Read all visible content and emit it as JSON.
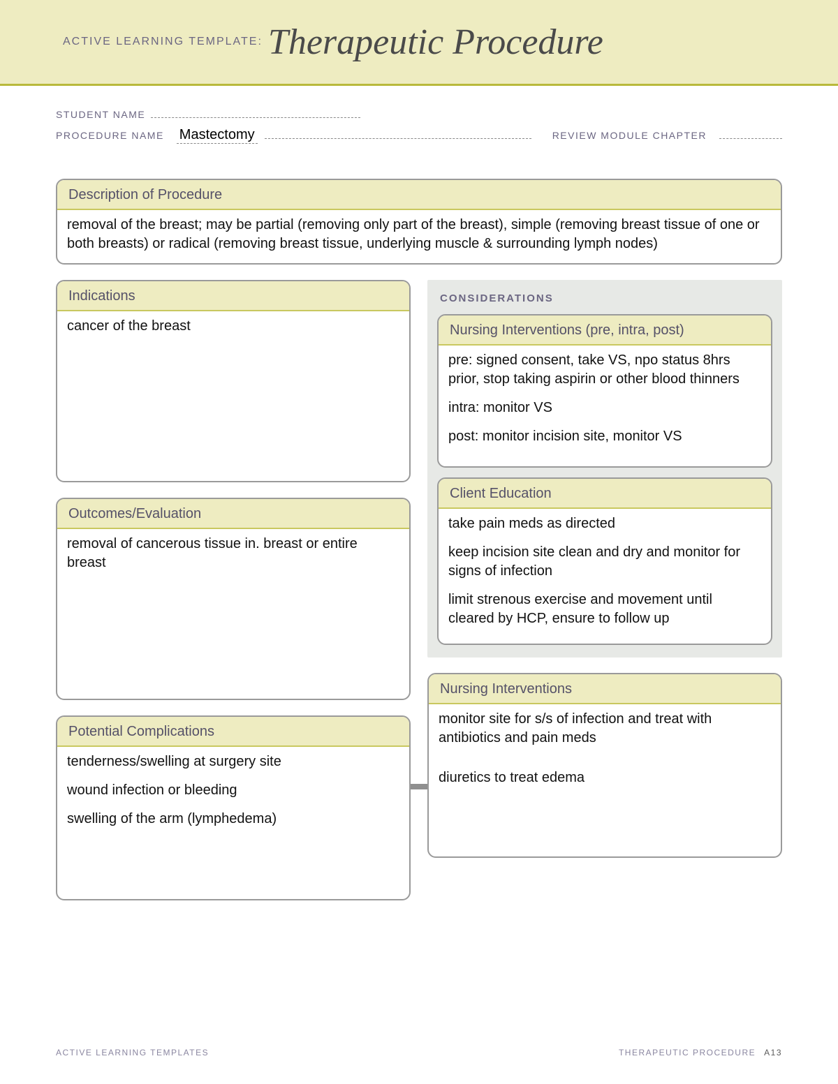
{
  "colors": {
    "band": "#eeecc1",
    "accent": "#b9b93b",
    "boxHeader": "#eeecc1",
    "boxHeaderRule": "#c9c85f",
    "boxBorder": "#9a9a9a",
    "considerationsBg": "#e7e9e6",
    "labelText": "#6b6682"
  },
  "header": {
    "prefix": "ACTIVE LEARNING TEMPLATE:",
    "title": "Therapeutic Procedure"
  },
  "meta": {
    "studentLabel": "STUDENT NAME",
    "studentValue": "",
    "procedureLabel": "PROCEDURE NAME",
    "procedureValue": "Mastectomy",
    "reviewLabel": "REVIEW MODULE CHAPTER",
    "reviewValue": ""
  },
  "boxes": {
    "description": {
      "title": "Description of Procedure",
      "body": "removal of the breast; may be partial (removing only part of the breast), simple (removing breast tissue of one or both breasts) or radical (removing breast tissue, underlying muscle & surrounding lymph nodes)"
    },
    "indications": {
      "title": "Indications",
      "body": "cancer of the breast"
    },
    "outcomes": {
      "title": "Outcomes/Evaluation",
      "body": "removal of cancerous tissue in. breast or entire breast"
    },
    "considerationsLabel": "CONSIDERATIONS",
    "nursingInterventionsPreIntraPost": {
      "title": "Nursing Interventions (pre, intra, post)",
      "p1": "pre: signed consent, take VS, npo status 8hrs prior, stop taking aspirin or other blood thinners",
      "p2": "intra: monitor VS",
      "p3": "post: monitor incision site, monitor VS"
    },
    "clientEducation": {
      "title": "Client Education",
      "p1": "take pain meds as directed",
      "p2": "keep incision site clean and dry and monitor for signs of infection",
      "p3": "limit strenous exercise and movement until cleared by HCP, ensure to follow up"
    },
    "potentialComplications": {
      "title": "Potential Complications",
      "p1": "tenderness/swelling at surgery site",
      "p2": "wound infection or bleeding",
      "p3": "swelling of the arm (lymphedema)"
    },
    "nursingInterventions": {
      "title": "Nursing Interventions",
      "p1": "monitor site for s/s of infection and treat with antibiotics and pain meds",
      "p2": "diuretics to treat edema"
    }
  },
  "footer": {
    "left": "ACTIVE LEARNING TEMPLATES",
    "rightLabel": "THERAPEUTIC PROCEDURE",
    "pageNum": "A13"
  }
}
